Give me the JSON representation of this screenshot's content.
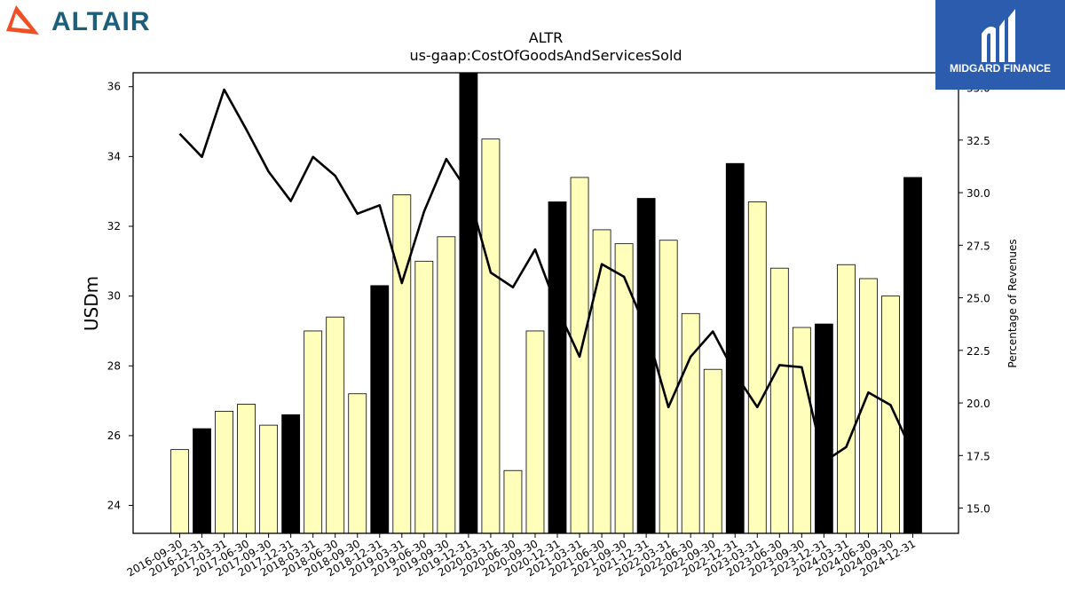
{
  "brand": {
    "left_logo_text": "ALTAIR",
    "left_logo_color": "#1d5f7a",
    "left_mark_color": "#f04e23",
    "right_logo_text": "MIDGARD FINANCE",
    "right_logo_bg": "#2c5cae"
  },
  "chart_data": {
    "type": "bar",
    "title": "ALTR",
    "subtitle": "us-gaap:CostOfGoodsAndServicesSold",
    "ylabel": "USDm",
    "y2label": "Percentage of Revenues",
    "ylim": [
      23.2,
      36.4
    ],
    "y2lim": [
      13.8,
      35.7
    ],
    "yticks": [
      "24",
      "26",
      "28",
      "30",
      "32",
      "34",
      "36"
    ],
    "y2ticks": [
      "15.0",
      "17.5",
      "20.0",
      "22.5",
      "25.0",
      "27.5",
      "30.0",
      "32.5",
      "35.0"
    ],
    "categories": [
      "2016-09-30",
      "2016-12-31",
      "2017-03-31",
      "2017-06-30",
      "2017-09-30",
      "2017-12-31",
      "2018-03-31",
      "2018-06-30",
      "2018-09-30",
      "2018-12-31",
      "2019-03-31",
      "2019-06-30",
      "2019-09-30",
      "2019-12-31",
      "2020-03-31",
      "2020-06-30",
      "2020-09-30",
      "2020-12-31",
      "2021-03-31",
      "2021-06-30",
      "2021-09-30",
      "2021-12-31",
      "2022-03-31",
      "2022-06-30",
      "2022-09-30",
      "2022-12-31",
      "2023-03-31",
      "2023-06-30",
      "2023-09-30",
      "2023-12-31",
      "2024-03-31",
      "2024-06-30",
      "2024-09-30",
      "2024-12-31"
    ],
    "series": [
      {
        "kind": "bar",
        "values": [
          25.6,
          26.2,
          26.7,
          26.9,
          26.3,
          26.6,
          29.0,
          29.4,
          27.2,
          30.3,
          32.9,
          31.0,
          31.7,
          36.4,
          34.5,
          25.0,
          29.0,
          32.7,
          33.4,
          31.9,
          31.5,
          32.8,
          31.6,
          29.5,
          27.9,
          33.8,
          32.7,
          30.8,
          29.1,
          29.2,
          30.9,
          30.5,
          30.0,
          33.4
        ],
        "colors": {
          "quarter": "#ffffbb",
          "year_end": "#000000"
        }
      },
      {
        "kind": "line",
        "axis": "right",
        "values": [
          32.8,
          31.7,
          34.9,
          33.0,
          31.0,
          29.6,
          31.7,
          30.8,
          29.0,
          29.4,
          25.7,
          29.1,
          31.6,
          30.0,
          26.2,
          25.5,
          27.3,
          24.5,
          22.2,
          26.6,
          26.0,
          23.5,
          19.8,
          22.2,
          23.4,
          21.4,
          19.8,
          21.8,
          21.7,
          17.2,
          17.9,
          20.5,
          19.9,
          17.6
        ],
        "color": "#000000"
      }
    ]
  }
}
